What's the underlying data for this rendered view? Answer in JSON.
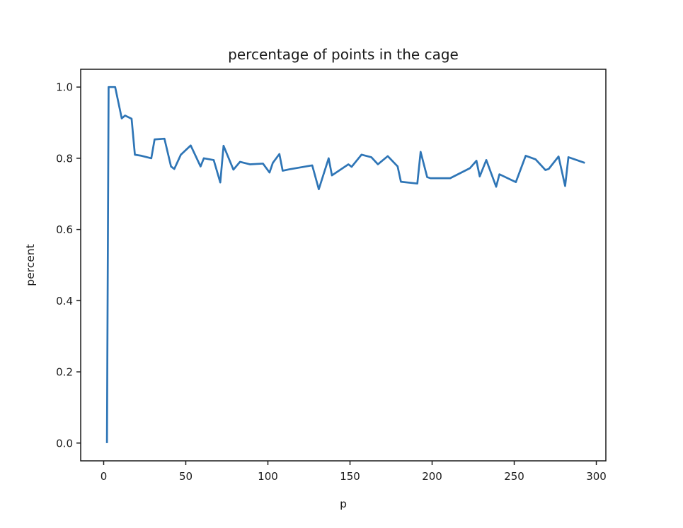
{
  "figure": {
    "title": "percentage of points in the cage",
    "xlabel": "p",
    "ylabel": "percent"
  },
  "chart_data": {
    "type": "line",
    "title": "percentage of points in the cage",
    "xlabel": "p",
    "ylabel": "percent",
    "grid": false,
    "legend": "none",
    "xlim": [
      -14,
      305.8
    ],
    "ylim": [
      -0.05,
      1.05
    ],
    "x_ticks": [
      0,
      50,
      100,
      150,
      200,
      250,
      300
    ],
    "x_tick_labels": [
      "0",
      "50",
      "100",
      "150",
      "200",
      "250",
      "300"
    ],
    "y_ticks": [
      0.0,
      0.2,
      0.4,
      0.6,
      0.8,
      1.0
    ],
    "y_tick_labels": [
      "0.0",
      "0.2",
      "0.4",
      "0.6",
      "0.8",
      "1.0"
    ],
    "line_color": "#2e75b6",
    "x": [
      2,
      3,
      5,
      7,
      11,
      13,
      17,
      19,
      23,
      29,
      31,
      37,
      41,
      43,
      47,
      53,
      59,
      61,
      67,
      71,
      73,
      79,
      83,
      89,
      97,
      101,
      103,
      107,
      109,
      113,
      127,
      131,
      137,
      139,
      149,
      151,
      157,
      163,
      167,
      173,
      179,
      181,
      191,
      193,
      197,
      199,
      211,
      223,
      227,
      229,
      233,
      239,
      241,
      251,
      257,
      263,
      269,
      271,
      277,
      281,
      283,
      293
    ],
    "series": [
      {
        "name": "percentage of points in the cage",
        "values": [
          0.0,
          1.0,
          1.0,
          1.0,
          0.912,
          0.92,
          0.911,
          0.81,
          0.807,
          0.8,
          0.853,
          0.855,
          0.777,
          0.77,
          0.81,
          0.836,
          0.777,
          0.8,
          0.795,
          0.732,
          0.835,
          0.768,
          0.79,
          0.783,
          0.785,
          0.76,
          0.787,
          0.812,
          0.765,
          0.769,
          0.78,
          0.713,
          0.8,
          0.752,
          0.783,
          0.776,
          0.81,
          0.803,
          0.783,
          0.806,
          0.777,
          0.734,
          0.729,
          0.818,
          0.747,
          0.744,
          0.744,
          0.772,
          0.793,
          0.749,
          0.795,
          0.72,
          0.755,
          0.733,
          0.807,
          0.797,
          0.767,
          0.77,
          0.805,
          0.722,
          0.803,
          0.787
        ]
      }
    ]
  }
}
